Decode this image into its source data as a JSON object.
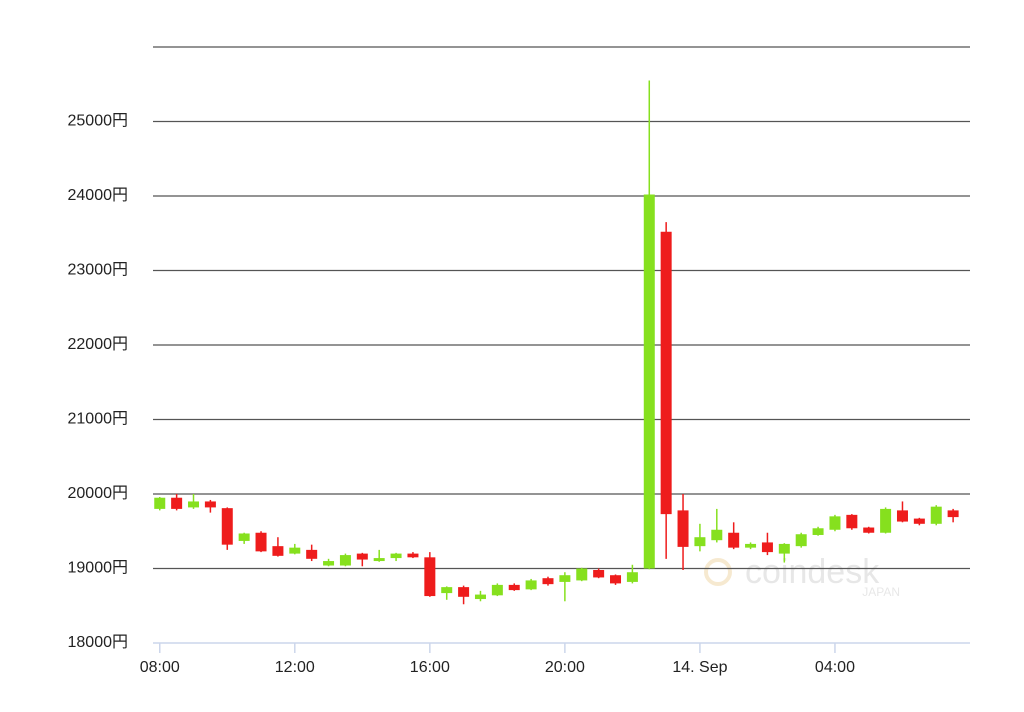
{
  "chart_data": {
    "type": "candlestick",
    "x": [
      8,
      8.5,
      9,
      9.5,
      10,
      10.5,
      11,
      11.5,
      12,
      12.5,
      13,
      13.5,
      14,
      14.5,
      15,
      15.5,
      16,
      16.5,
      17,
      17.5,
      18,
      18.5,
      19,
      19.5,
      20,
      20.5,
      21,
      21.5,
      22,
      22.5,
      23,
      23.5,
      24,
      24.5,
      25,
      25.5,
      26,
      26.5,
      27,
      27.5,
      28,
      28.5,
      29,
      29.5,
      30,
      30.5,
      31,
      31.5
    ],
    "open": [
      19800,
      19950,
      19820,
      19900,
      19810,
      19370,
      19480,
      19300,
      19200,
      19250,
      19040,
      19040,
      19200,
      19100,
      19140,
      19200,
      19150,
      18670,
      18750,
      18590,
      18640,
      18780,
      18720,
      18870,
      18820,
      18840,
      18980,
      18910,
      18820,
      19000,
      23520,
      19780,
      19300,
      19380,
      19480,
      19280,
      19350,
      19200,
      19300,
      19450,
      19520,
      19720,
      19550,
      19480,
      19780,
      19670,
      19600,
      19780
    ],
    "high": [
      19960,
      20000,
      20000,
      19920,
      19820,
      19480,
      19500,
      19420,
      19330,
      19320,
      19130,
      19200,
      19210,
      19250,
      19210,
      19220,
      19220,
      18760,
      18770,
      18700,
      18800,
      18800,
      18860,
      18890,
      18950,
      19010,
      19000,
      18920,
      19050,
      25550,
      23650,
      20000,
      19600,
      19800,
      19620,
      19350,
      19480,
      19340,
      19480,
      19560,
      19720,
      19730,
      19560,
      19820,
      19900,
      19680,
      19850,
      19800
    ],
    "low": [
      19780,
      19780,
      19800,
      19750,
      19250,
      19330,
      19220,
      19160,
      19190,
      19100,
      19030,
      19030,
      19030,
      19090,
      19100,
      19140,
      18620,
      18580,
      18520,
      18560,
      18630,
      18700,
      18710,
      18770,
      18560,
      18830,
      18870,
      18780,
      18800,
      18990,
      19130,
      18980,
      19230,
      19350,
      19260,
      19260,
      19180,
      19080,
      19280,
      19440,
      19500,
      19520,
      19470,
      19470,
      19620,
      19580,
      19580,
      19620
    ],
    "close": [
      19950,
      19800,
      19900,
      19820,
      19320,
      19470,
      19230,
      19170,
      19280,
      19130,
      19100,
      19180,
      19120,
      19140,
      19200,
      19150,
      18630,
      18750,
      18620,
      18650,
      18780,
      18710,
      18840,
      18790,
      18910,
      19000,
      18880,
      18800,
      18950,
      24020,
      19730,
      19290,
      19420,
      19520,
      19280,
      19330,
      19220,
      19330,
      19460,
      19540,
      19700,
      19540,
      19480,
      19800,
      19630,
      19600,
      19830,
      19690
    ],
    "up_color": "#86e01e",
    "down_color": "#ee1c1c",
    "xlim": [
      7.8,
      32
    ],
    "xticks": [
      {
        "value": 8,
        "label": "08:00"
      },
      {
        "value": 12,
        "label": "12:00"
      },
      {
        "value": 16,
        "label": "16:00"
      },
      {
        "value": 20,
        "label": "20:00"
      },
      {
        "value": 24,
        "label": "14. Sep"
      },
      {
        "value": 28,
        "label": "04:00"
      }
    ],
    "ylim": [
      18000,
      26000
    ],
    "yticks": [
      {
        "value": 18000,
        "label": "18000円"
      },
      {
        "value": 19000,
        "label": "19000円"
      },
      {
        "value": 20000,
        "label": "20000円"
      },
      {
        "value": 21000,
        "label": "21000円"
      },
      {
        "value": 22000,
        "label": "22000円"
      },
      {
        "value": 23000,
        "label": "23000円"
      },
      {
        "value": 24000,
        "label": "24000円"
      },
      {
        "value": 25000,
        "label": "25000円"
      }
    ],
    "grid": true,
    "watermark": "coindesk",
    "watermark_sub": "JAPAN"
  }
}
